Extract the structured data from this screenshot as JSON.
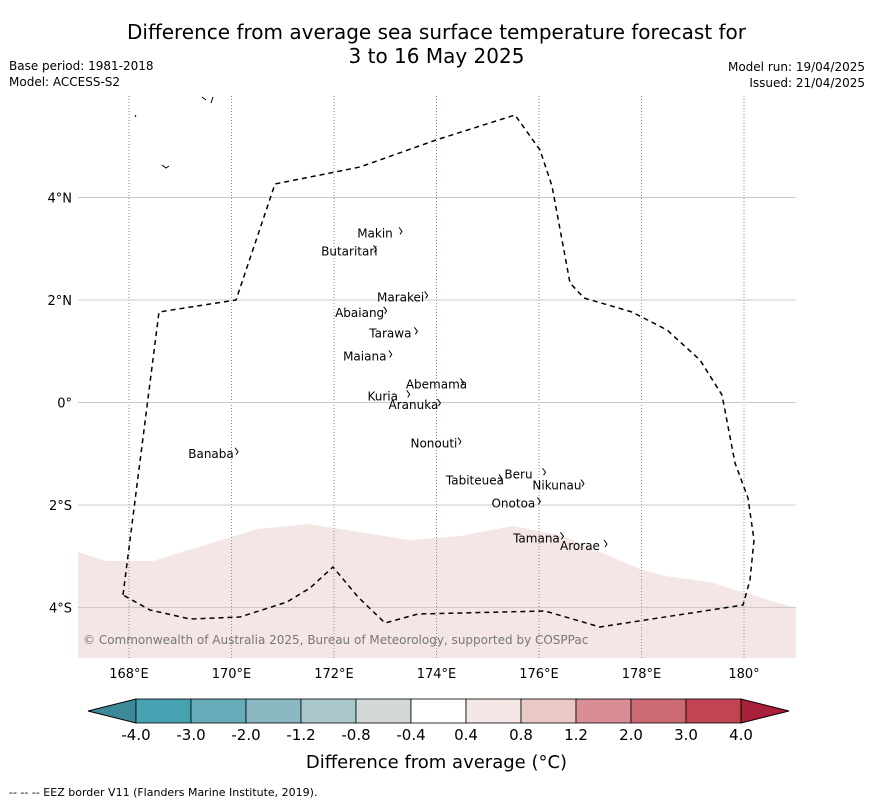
{
  "title": {
    "line1": "Difference from average sea surface temperature forecast for",
    "line2": "3 to 16 May 2025"
  },
  "meta_left": {
    "base_period": "Base period: 1981-2018",
    "model": "Model: ACCESS-S2"
  },
  "meta_right": {
    "model_run": "Model run: 19/04/2025",
    "issued": "Issued: 21/04/2025"
  },
  "map": {
    "lon_ticks": [
      {
        "lon": 168,
        "label": "168°E"
      },
      {
        "lon": 170,
        "label": "170°E"
      },
      {
        "lon": 172,
        "label": "172°E"
      },
      {
        "lon": 174,
        "label": "174°E"
      },
      {
        "lon": 176,
        "label": "176°E"
      },
      {
        "lon": 178,
        "label": "178°E"
      },
      {
        "lon": 180,
        "label": "180°"
      }
    ],
    "lat_ticks": [
      {
        "lat": 4,
        "label": "4°N"
      },
      {
        "lat": 2,
        "label": "2°N"
      },
      {
        "lat": 0,
        "label": "0°"
      },
      {
        "lat": -2,
        "label": "2°S"
      },
      {
        "lat": -4,
        "label": "4°S"
      }
    ],
    "islands": [
      {
        "name": "Makin",
        "lon": 172.8,
        "lat": 3.3
      },
      {
        "name": "Butaritari",
        "lon": 172.3,
        "lat": 2.95
      },
      {
        "name": "Marakei",
        "lon": 173.3,
        "lat": 2.05
      },
      {
        "name": "Abaiang",
        "lon": 172.5,
        "lat": 1.75
      },
      {
        "name": "Tarawa",
        "lon": 173.1,
        "lat": 1.35
      },
      {
        "name": "Maiana",
        "lon": 172.6,
        "lat": 0.9
      },
      {
        "name": "Abemama",
        "lon": 174.0,
        "lat": 0.35
      },
      {
        "name": "Kuria",
        "lon": 172.95,
        "lat": 0.12
      },
      {
        "name": "Aranuka",
        "lon": 173.55,
        "lat": -0.05
      },
      {
        "name": "Nonouti",
        "lon": 173.95,
        "lat": -0.8
      },
      {
        "name": "Banaba",
        "lon": 169.6,
        "lat": -1.0
      },
      {
        "name": "Beru",
        "lon": 175.6,
        "lat": -1.4
      },
      {
        "name": "Nikunau",
        "lon": 176.35,
        "lat": -1.62
      },
      {
        "name": "Tabiteuea",
        "lon": 174.75,
        "lat": -1.52
      },
      {
        "name": "Onotoa",
        "lon": 175.5,
        "lat": -1.97
      },
      {
        "name": "Tamana",
        "lon": 175.95,
        "lat": -2.65
      },
      {
        "name": "Arorae",
        "lon": 176.8,
        "lat": -2.8
      }
    ],
    "copyright": "© Commonwealth of Australia 2025, Bureau of Meteorology, supported by COSPPac",
    "anomaly_region": {
      "color": "#f4e6e5",
      "category": "0.4 to 0.8"
    }
  },
  "colorbar": {
    "bins": [
      {
        "color": "#3b8a9a"
      },
      {
        "color": "#46a1b0"
      },
      {
        "color": "#68acb9"
      },
      {
        "color": "#89b7c2"
      },
      {
        "color": "#a9c7cb"
      },
      {
        "color": "#d2d8d8"
      },
      {
        "color": "#ffffff"
      },
      {
        "color": "#f4e6e5"
      },
      {
        "color": "#e9c8c5"
      },
      {
        "color": "#d98d94"
      },
      {
        "color": "#cc6a74"
      },
      {
        "color": "#c24352"
      },
      {
        "color": "#a8213a"
      }
    ],
    "tick_labels": [
      "-4.0",
      "-3.0",
      "-2.0",
      "-1.2",
      "-0.8",
      "-0.4",
      "0.4",
      "0.8",
      "1.2",
      "2.0",
      "3.0",
      "4.0"
    ],
    "label": "Difference from average (°C)"
  },
  "footer": "--  --  -- EEZ border V11 (Flanders Marine Institute, 2019)."
}
